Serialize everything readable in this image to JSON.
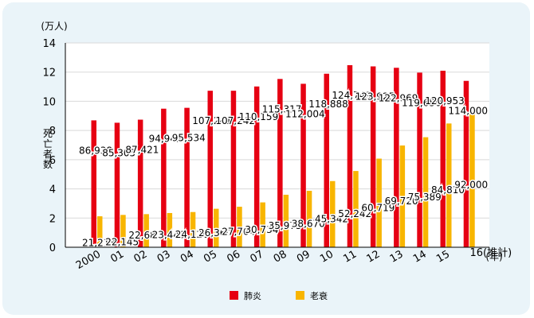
{
  "chart_data": {
    "type": "bar",
    "y_unit": "(万人)",
    "ylabel": "死亡者数",
    "x_unit": "(年)",
    "ylim": [
      0,
      14
    ],
    "yticks": [
      0,
      2,
      4,
      6,
      8,
      10,
      12,
      14
    ],
    "categories": [
      "2000",
      "01",
      "02",
      "03",
      "04",
      "05",
      "06",
      "07",
      "08",
      "09",
      "10",
      "11",
      "12",
      "13",
      "14",
      "15",
      "16(推計)"
    ],
    "series": [
      {
        "name": "肺炎",
        "color": "#e60012",
        "values": [
          86938,
          85305,
          87421,
          94942,
          95534,
          107241,
          107242,
          110159,
          115317,
          112004,
          118888,
          124749,
          123925,
          122969,
          119650,
          120953,
          114000
        ],
        "labels": [
          "86,938",
          "85,305",
          "87,421",
          "94,942",
          "95,534",
          "107,241",
          "107,242",
          "110,159",
          "115,317",
          "112,004",
          "118,888",
          "124,749",
          "123,925",
          "122,969",
          "119,650",
          "120,953",
          "114,000"
        ]
      },
      {
        "name": "老衰",
        "color": "#f8b500",
        "values": [
          21213,
          22145,
          22682,
          23449,
          24126,
          26360,
          27764,
          30734,
          35975,
          38670,
          45342,
          52242,
          60719,
          69720,
          75389,
          84810,
          92000
        ],
        "labels": [
          "21,213",
          "22,145",
          "22,682",
          "23,449",
          "24,126",
          "26,360",
          "27,764",
          "30,734",
          "35,975",
          "38,670",
          "45,342",
          "52,242",
          "60,719",
          "69,720",
          "75,389",
          "84,810",
          "92,000"
        ]
      }
    ]
  }
}
